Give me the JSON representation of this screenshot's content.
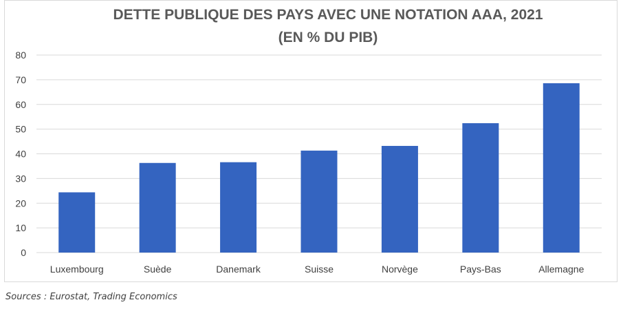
{
  "chart_data": {
    "type": "bar",
    "title": "DETTE PUBLIQUE DES PAYS AVEC UNE NOTATION AAA, 2021",
    "subtitle": "(EN % DU PIB)",
    "categories": [
      "Luxembourg",
      "Suède",
      "Danemark",
      "Suisse",
      "Norvège",
      "Pays-Bas",
      "Allemagne"
    ],
    "values": [
      24.4,
      36.3,
      36.6,
      41.3,
      43.2,
      52.4,
      68.6
    ],
    "ylim": [
      0,
      80
    ],
    "yticks": [
      "0",
      "10",
      "20",
      "30",
      "40",
      "50",
      "60",
      "70",
      "80"
    ],
    "grid": true,
    "bar_color": "#3464c0",
    "grid_color": "#d9d9d9"
  },
  "source": "Sources : Eurostat, Trading Economics"
}
